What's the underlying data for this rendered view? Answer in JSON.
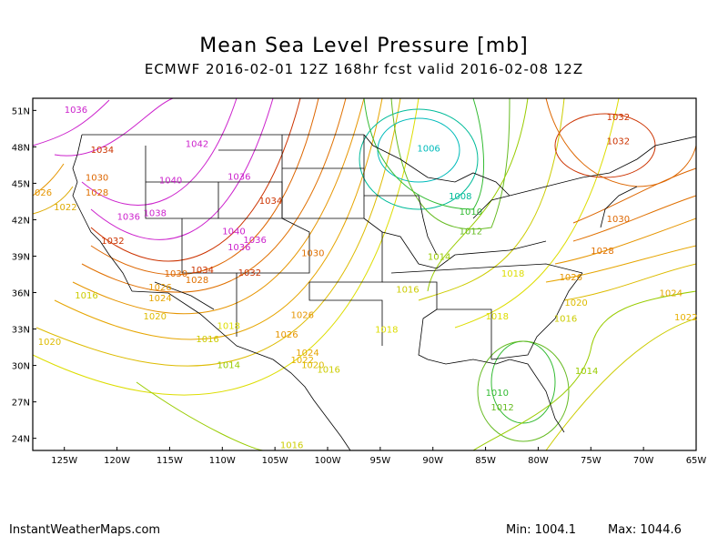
{
  "title": "Mean Sea Level Pressure [mb]",
  "subtitle": "ECMWF 2016-02-01 12Z 168hr fcst valid 2016-02-08 12Z",
  "footer": {
    "site": "InstantWeatherMaps.com",
    "min": "Min: 1004.1",
    "max": "Max: 1044.6"
  },
  "axes": {
    "lat_ticks": [
      "51N",
      "48N",
      "45N",
      "42N",
      "39N",
      "36N",
      "33N",
      "30N",
      "27N",
      "24N"
    ],
    "lon_ticks": [
      "125W",
      "120W",
      "115W",
      "110W",
      "105W",
      "100W",
      "95W",
      "90W",
      "85W",
      "80W",
      "75W",
      "70W",
      "65W"
    ]
  },
  "isobar_labels": [
    {
      "text": "1036",
      "lon": -125.0,
      "lat": 50.8,
      "color": "#cc22cc"
    },
    {
      "text": "1034",
      "lon": -122.5,
      "lat": 47.5,
      "color": "#cc3300"
    },
    {
      "text": "1042",
      "lon": -113.5,
      "lat": 48.0,
      "color": "#cc22cc"
    },
    {
      "text": "1030",
      "lon": -123.0,
      "lat": 45.2,
      "color": "#dd6600"
    },
    {
      "text": "1040",
      "lon": -116.0,
      "lat": 45.0,
      "color": "#cc22cc"
    },
    {
      "text": "1036",
      "lon": -109.5,
      "lat": 45.3,
      "color": "#cc22cc"
    },
    {
      "text": "1034",
      "lon": -106.5,
      "lat": 43.3,
      "color": "#cc3300"
    },
    {
      "text": "026",
      "lon": -128.0,
      "lat": 44.0,
      "color": "#e69500"
    },
    {
      "text": "1028",
      "lon": -123.0,
      "lat": 44.0,
      "color": "#e07000"
    },
    {
      "text": "1022",
      "lon": -126.0,
      "lat": 42.8,
      "color": "#ddaa00"
    },
    {
      "text": "1036",
      "lon": -120.0,
      "lat": 42.0,
      "color": "#cc22cc"
    },
    {
      "text": "1038",
      "lon": -117.5,
      "lat": 42.3,
      "color": "#cc22cc"
    },
    {
      "text": "1040",
      "lon": -110.0,
      "lat": 40.8,
      "color": "#cc22cc"
    },
    {
      "text": "1036",
      "lon": -108.0,
      "lat": 40.1,
      "color": "#cc22cc"
    },
    {
      "text": "1036",
      "lon": -109.5,
      "lat": 39.5,
      "color": "#cc22cc"
    },
    {
      "text": "1032",
      "lon": -121.5,
      "lat": 40.0,
      "color": "#cc3300"
    },
    {
      "text": "1030",
      "lon": -102.5,
      "lat": 39.0,
      "color": "#e07000"
    },
    {
      "text": "1034",
      "lon": -113.0,
      "lat": 37.6,
      "color": "#cc3300"
    },
    {
      "text": "1030",
      "lon": -115.5,
      "lat": 37.3,
      "color": "#dd6600"
    },
    {
      "text": "1028",
      "lon": -113.5,
      "lat": 36.8,
      "color": "#e07000"
    },
    {
      "text": "1032",
      "lon": -108.5,
      "lat": 37.4,
      "color": "#cc3300"
    },
    {
      "text": "1026",
      "lon": -117.0,
      "lat": 36.2,
      "color": "#e69500"
    },
    {
      "text": "1016",
      "lon": -124.0,
      "lat": 35.5,
      "color": "#cccc00"
    },
    {
      "text": "1024",
      "lon": -117.0,
      "lat": 35.3,
      "color": "#e6a500"
    },
    {
      "text": "1020",
      "lon": -117.5,
      "lat": 33.8,
      "color": "#ddbb00"
    },
    {
      "text": "1026",
      "lon": -103.5,
      "lat": 33.9,
      "color": "#e69500"
    },
    {
      "text": "1018",
      "lon": -110.5,
      "lat": 33.0,
      "color": "#dddd00"
    },
    {
      "text": "1018",
      "lon": -95.5,
      "lat": 32.7,
      "color": "#dddd00"
    },
    {
      "text": "1026",
      "lon": -105.0,
      "lat": 32.3,
      "color": "#e69500"
    },
    {
      "text": "1016",
      "lon": -112.5,
      "lat": 31.9,
      "color": "#cccc00"
    },
    {
      "text": "1020",
      "lon": -127.5,
      "lat": 31.7,
      "color": "#ddbb00"
    },
    {
      "text": "1024",
      "lon": -103.0,
      "lat": 30.8,
      "color": "#e6a500"
    },
    {
      "text": "1022",
      "lon": -103.5,
      "lat": 30.2,
      "color": "#e6b000"
    },
    {
      "text": "1020",
      "lon": -102.5,
      "lat": 29.8,
      "color": "#ddbb00"
    },
    {
      "text": "1014",
      "lon": -110.5,
      "lat": 29.8,
      "color": "#99cc00"
    },
    {
      "text": "1016",
      "lon": -101.0,
      "lat": 29.4,
      "color": "#cccc00"
    },
    {
      "text": "1016",
      "lon": -104.5,
      "lat": 23.2,
      "color": "#cccc00"
    },
    {
      "text": "1006",
      "lon": -91.5,
      "lat": 47.6,
      "color": "#00bbbb"
    },
    {
      "text": "1008",
      "lon": -88.5,
      "lat": 43.7,
      "color": "#00bb99"
    },
    {
      "text": "1010",
      "lon": -87.5,
      "lat": 42.4,
      "color": "#33bb33"
    },
    {
      "text": "1012",
      "lon": -87.5,
      "lat": 40.8,
      "color": "#66bb22"
    },
    {
      "text": "1014",
      "lon": -90.5,
      "lat": 38.7,
      "color": "#99cc00"
    },
    {
      "text": "1016",
      "lon": -93.5,
      "lat": 36.0,
      "color": "#cccc00"
    },
    {
      "text": "1018",
      "lon": -83.5,
      "lat": 37.3,
      "color": "#dddd00"
    },
    {
      "text": "1018",
      "lon": -85.0,
      "lat": 33.8,
      "color": "#dddd00"
    },
    {
      "text": "1016",
      "lon": -78.5,
      "lat": 33.6,
      "color": "#cccc00"
    },
    {
      "text": "1014",
      "lon": -76.5,
      "lat": 29.3,
      "color": "#99cc00"
    },
    {
      "text": "1010",
      "lon": -85.0,
      "lat": 27.5,
      "color": "#33bb33"
    },
    {
      "text": "1012",
      "lon": -84.5,
      "lat": 26.3,
      "color": "#66bb22"
    },
    {
      "text": "1032",
      "lon": -73.5,
      "lat": 50.2,
      "color": "#cc3300"
    },
    {
      "text": "1032",
      "lon": -73.5,
      "lat": 48.2,
      "color": "#cc3300"
    },
    {
      "text": "1030",
      "lon": -73.5,
      "lat": 41.8,
      "color": "#dd6600"
    },
    {
      "text": "1028",
      "lon": -75.0,
      "lat": 39.2,
      "color": "#e07000"
    },
    {
      "text": "1026",
      "lon": -78.0,
      "lat": 37.0,
      "color": "#e69500"
    },
    {
      "text": "1024",
      "lon": -68.5,
      "lat": 35.7,
      "color": "#e6a500"
    },
    {
      "text": "1020",
      "lon": -77.5,
      "lat": 34.9,
      "color": "#ddbb00"
    },
    {
      "text": "1022",
      "lon": -66.0,
      "lat": 33.7,
      "color": "#e6b000"
    }
  ],
  "colors": {
    "frame": "#000000",
    "boundaries": "#000000"
  }
}
